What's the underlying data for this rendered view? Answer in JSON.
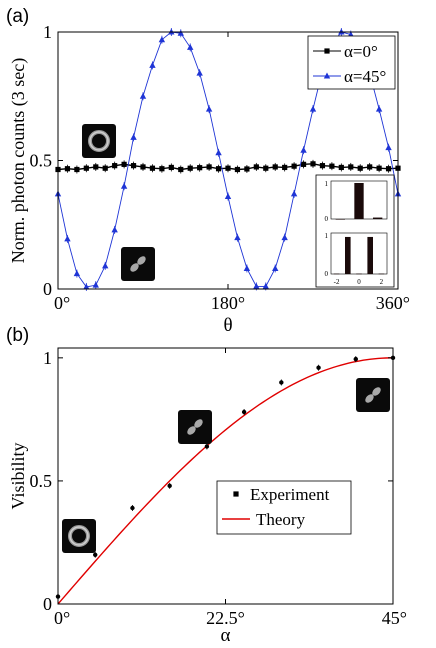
{
  "chart_data": [
    {
      "panel_label": "(a)",
      "type": "line",
      "xlabel": "θ",
      "ylabel": "Norm. photon counts (3 sec)",
      "xlim": [
        0,
        360
      ],
      "ylim": [
        0,
        1
      ],
      "xticks": [
        {
          "v": 0,
          "label": "0°"
        },
        {
          "v": 180,
          "label": "180°"
        },
        {
          "v": 360,
          "label": "360°"
        }
      ],
      "yticks": [
        {
          "v": 0,
          "label": "0"
        },
        {
          "v": 0.5,
          "label": "0.5"
        },
        {
          "v": 1,
          "label": "1"
        }
      ],
      "legend_position": "top-right",
      "series": [
        {
          "name": "α=0°",
          "color": "#000000",
          "marker": "square",
          "x": [
            0,
            10,
            20,
            30,
            40,
            50,
            60,
            70,
            80,
            90,
            100,
            110,
            120,
            130,
            140,
            150,
            160,
            170,
            180,
            190,
            200,
            210,
            220,
            230,
            240,
            250,
            260,
            270,
            280,
            290,
            300,
            310,
            320,
            330,
            340,
            350,
            360
          ],
          "y": [
            0.465,
            0.468,
            0.465,
            0.47,
            0.475,
            0.47,
            0.48,
            0.485,
            0.48,
            0.475,
            0.47,
            0.468,
            0.473,
            0.465,
            0.47,
            0.472,
            0.475,
            0.468,
            0.47,
            0.465,
            0.467,
            0.475,
            0.47,
            0.475,
            0.473,
            0.478,
            0.485,
            0.487,
            0.48,
            0.478,
            0.473,
            0.475,
            0.47,
            0.475,
            0.47,
            0.468,
            0.47
          ]
        },
        {
          "name": "α=45°",
          "color": "#1f35d6",
          "marker": "triangle",
          "x": [
            0,
            10,
            20,
            30,
            40,
            50,
            60,
            70,
            80,
            90,
            100,
            110,
            120,
            130,
            140,
            150,
            160,
            170,
            180,
            190,
            200,
            210,
            220,
            230,
            240,
            250,
            260,
            270,
            280,
            290,
            300,
            310,
            320,
            330,
            340,
            350,
            360
          ],
          "y": [
            0.37,
            0.195,
            0.06,
            0.008,
            0.015,
            0.09,
            0.23,
            0.4,
            0.59,
            0.75,
            0.87,
            0.97,
            1.0,
            0.995,
            0.94,
            0.84,
            0.7,
            0.53,
            0.36,
            0.2,
            0.08,
            0.01,
            0.01,
            0.08,
            0.2,
            0.37,
            0.54,
            0.7,
            0.85,
            0.95,
            1.0,
            0.99,
            0.93,
            0.84,
            0.7,
            0.55,
            0.37
          ]
        }
      ],
      "inset": {
        "upper": {
          "ytick_labels": [
            "0",
            "1"
          ],
          "values": [
            0,
            1.0,
            0.04
          ]
        },
        "lower": {
          "ytick_labels": [
            "0",
            "1"
          ],
          "xtick_labels": [
            "-2",
            "0",
            "2"
          ],
          "values": [
            0.01,
            0.95,
            0.01,
            0.95,
            0.01
          ]
        }
      }
    },
    {
      "panel_label": "(b)",
      "type": "scatter",
      "xlabel": "α",
      "ylabel": "Visibility",
      "xlim": [
        0,
        45
      ],
      "ylim": [
        0,
        1.04
      ],
      "xticks": [
        {
          "v": 0,
          "label": "0°"
        },
        {
          "v": 22.5,
          "label": "22.5°"
        },
        {
          "v": 45,
          "label": "45°"
        }
      ],
      "yticks": [
        {
          "v": 0,
          "label": "0"
        },
        {
          "v": 0.5,
          "label": "0.5"
        },
        {
          "v": 1,
          "label": "1"
        }
      ],
      "legend_position": "lower-right",
      "series": [
        {
          "name": "Experiment",
          "color": "#000000",
          "marker": "dot",
          "x": [
            0,
            5,
            10,
            15,
            20,
            25,
            30,
            35,
            40,
            45
          ],
          "y": [
            0.03,
            0.2,
            0.39,
            0.48,
            0.64,
            0.78,
            0.9,
            0.96,
            0.995,
            1.0
          ]
        },
        {
          "name": "Theory",
          "color": "#e00000",
          "marker": "line",
          "formula": "sin(2α)"
        }
      ]
    }
  ]
}
